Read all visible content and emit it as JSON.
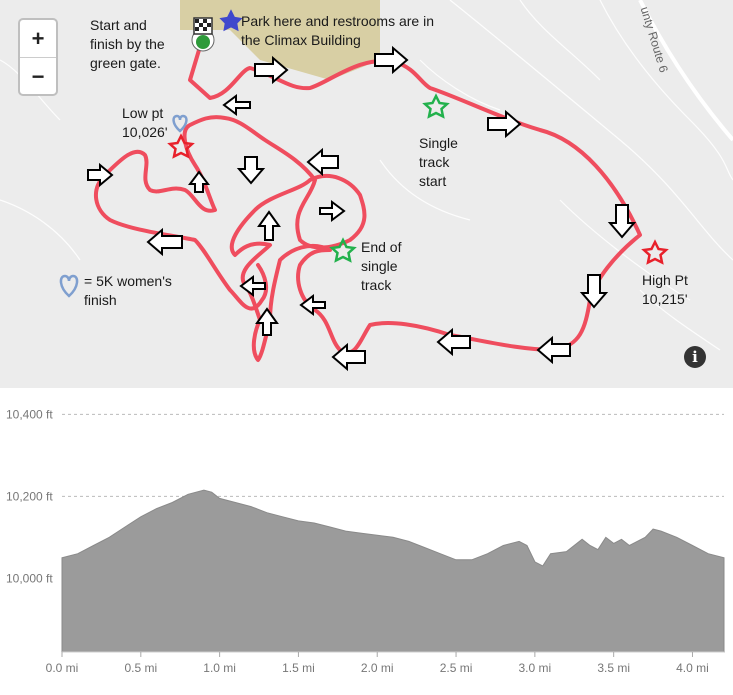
{
  "map": {
    "zoom_in": "+",
    "zoom_out": "−",
    "info_label": "i",
    "road_label": "unty Route 6",
    "labels": {
      "start_l1": "Start and",
      "start_l2": "finish by the",
      "start_l3": "green gate.",
      "park_l1": "Park here and restrooms are in",
      "park_l2": "the Climax Building",
      "low_l1": "Low pt",
      "low_l2": "10,026'",
      "single_l1": "Single",
      "single_l2": "track",
      "single_l3": "start",
      "end_l1": "End of",
      "end_l2": "single",
      "end_l3": "track",
      "high_l1": "High Pt",
      "high_l2": "10,215'",
      "women_l1": "= 5K women's",
      "women_l2": "finish"
    },
    "colors": {
      "route": "#ef4d5e",
      "map_bg": "#ececec",
      "building": "#d8cfa4",
      "star_red": "#e8212b",
      "star_green": "#22b14c",
      "star_blue": "#3f48cc",
      "heart": "#7f9fcf"
    }
  },
  "profile": {
    "y_ticks": [
      "10,400 ft",
      "10,200 ft",
      "10,000 ft"
    ],
    "x_ticks": [
      "0.0 mi",
      "0.5 mi",
      "1.0 mi",
      "1.5 mi",
      "2.0 mi",
      "2.5 mi",
      "3.0 mi",
      "3.5 mi",
      "4.0 mi"
    ]
  },
  "chart_data": {
    "type": "area",
    "xlabel": "",
    "ylabel": "",
    "x_unit": "mi",
    "y_unit": "ft",
    "xlim": [
      0,
      4.2
    ],
    "ylim": [
      9820,
      10440
    ],
    "grid": true,
    "series": [
      {
        "x": [
          0.0,
          0.1,
          0.2,
          0.3,
          0.4,
          0.5,
          0.6,
          0.7,
          0.8,
          0.9,
          0.95,
          1.0,
          1.1,
          1.2,
          1.3,
          1.4,
          1.5,
          1.6,
          1.7,
          1.8,
          1.9,
          2.0,
          2.1,
          2.2,
          2.3,
          2.4,
          2.5,
          2.6,
          2.7,
          2.8,
          2.9,
          2.95,
          3.0,
          3.05,
          3.1,
          3.2,
          3.3,
          3.35,
          3.4,
          3.45,
          3.5,
          3.55,
          3.6,
          3.7,
          3.75,
          3.8,
          3.9,
          4.0,
          4.1,
          4.2
        ],
        "y": [
          10050,
          10060,
          10080,
          10100,
          10125,
          10150,
          10170,
          10185,
          10205,
          10215,
          10210,
          10195,
          10185,
          10175,
          10160,
          10150,
          10140,
          10135,
          10125,
          10115,
          10110,
          10105,
          10100,
          10090,
          10075,
          10060,
          10045,
          10045,
          10060,
          10080,
          10090,
          10080,
          10040,
          10030,
          10060,
          10065,
          10095,
          10080,
          10070,
          10100,
          10085,
          10095,
          10080,
          10100,
          10120,
          10115,
          10100,
          10080,
          10060,
          10050
        ]
      }
    ]
  }
}
